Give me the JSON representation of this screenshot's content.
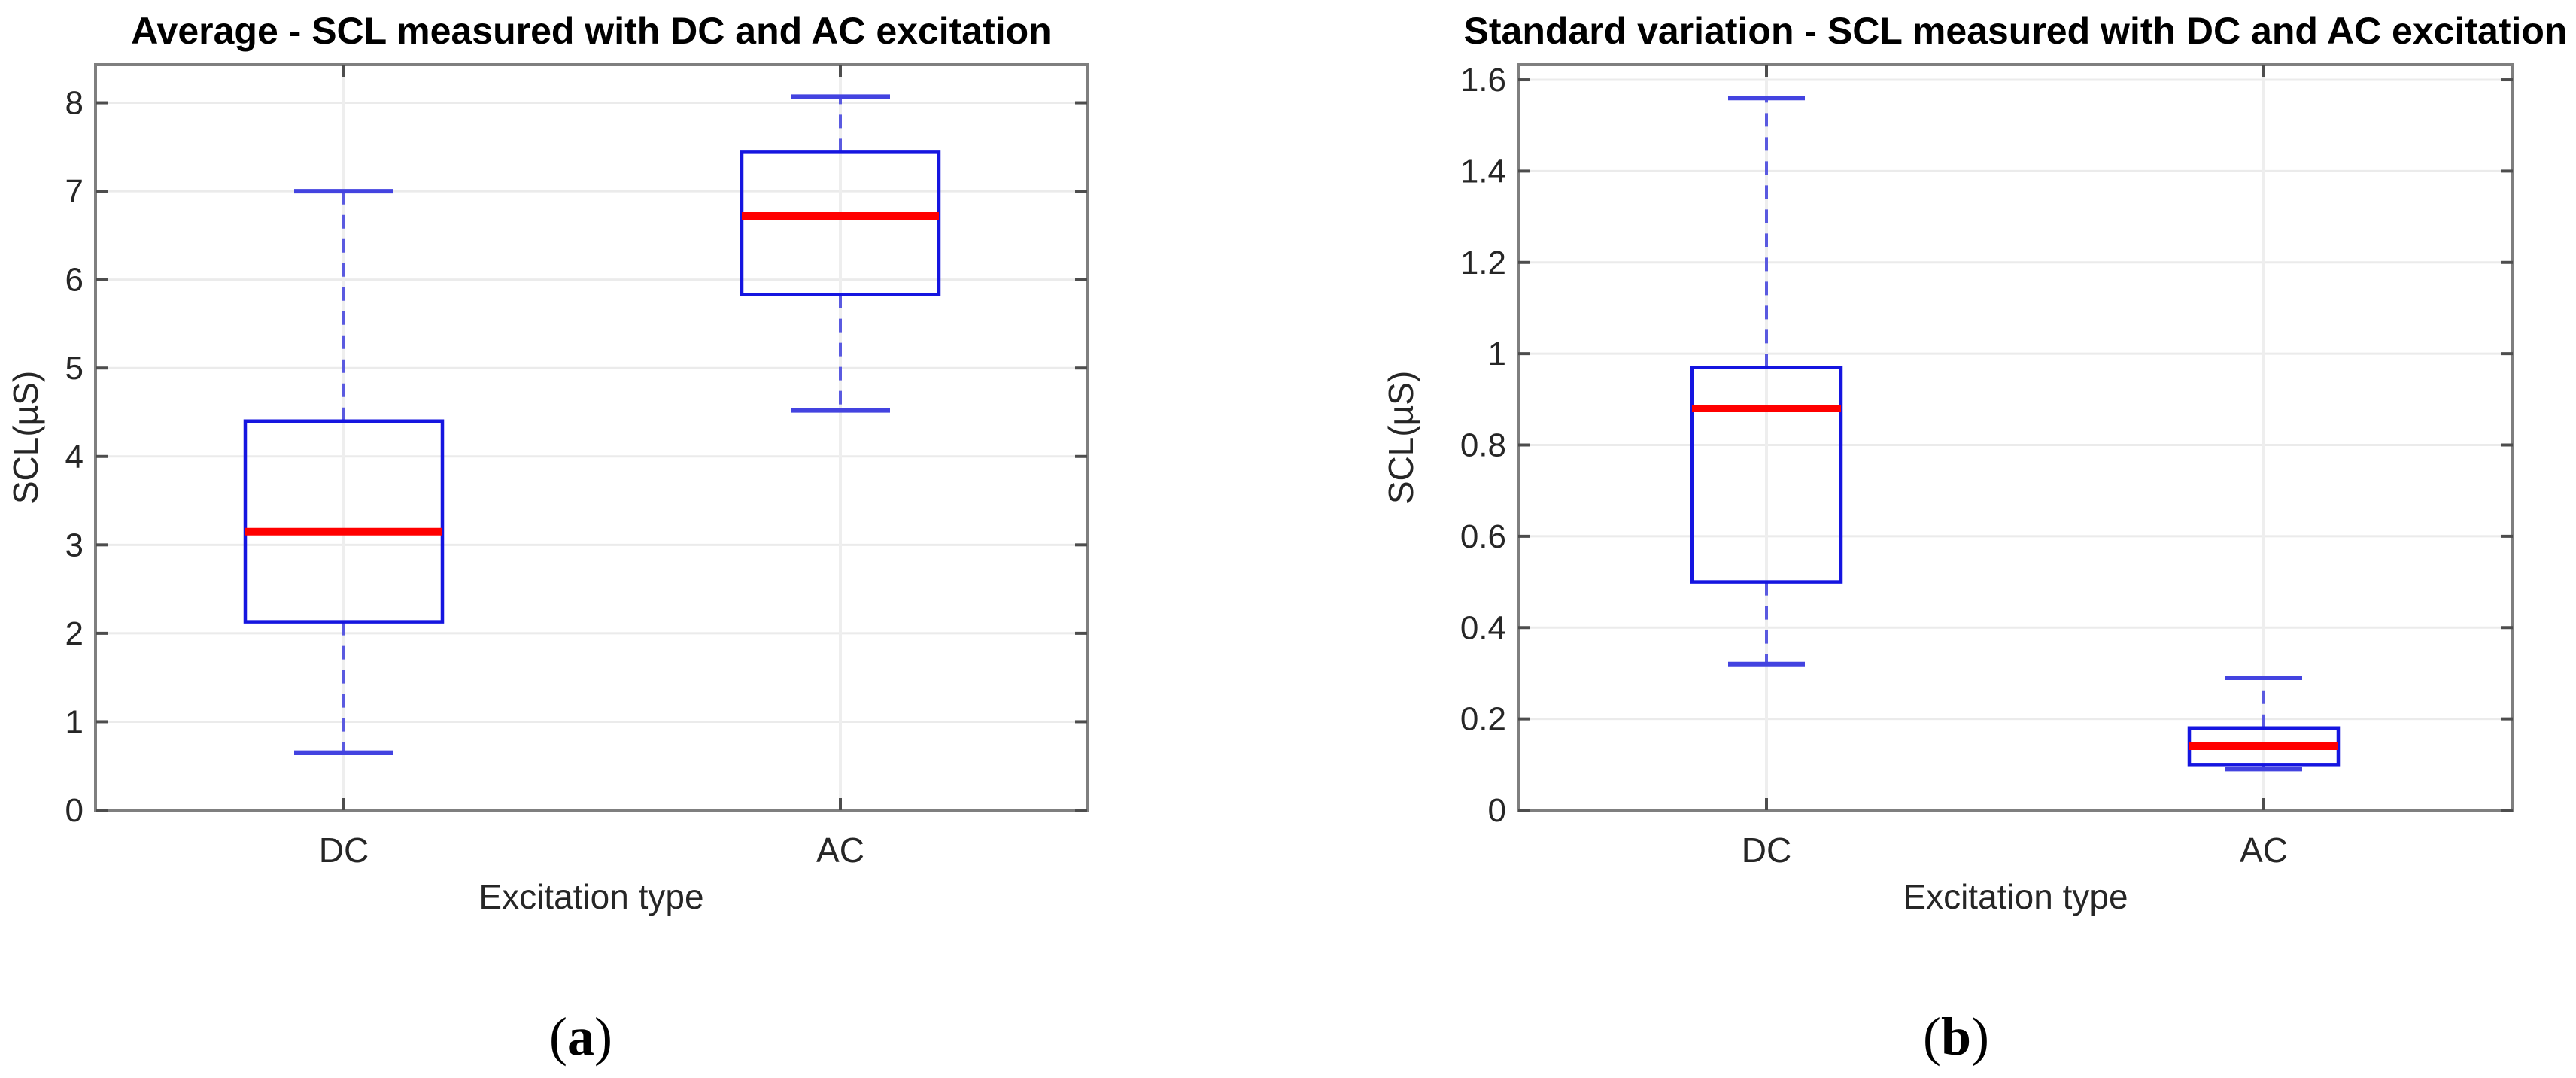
{
  "figure": {
    "background": "#ffffff",
    "panel_captions": [
      "(a)",
      "(b)"
    ]
  },
  "colors": {
    "box_blue": "#1515e0",
    "whisker_blue": "#5a5ae0",
    "cap_blue": "#4343e0",
    "median_red": "#ff0000",
    "axis_gray": "#7f7f7f",
    "tick_gray": "#4d4d4d",
    "grid_gray": "#ebebeb",
    "vgrid_gray": "#eeeeee",
    "tick_label_color": "#262626",
    "title_color": "#000000"
  },
  "chart_data": [
    {
      "type": "boxplot",
      "title": "Average - SCL measured with DC and AC excitation",
      "xlabel": "Excitation type",
      "ylabel": "SCL(µS)",
      "caption": "(a)",
      "categories": [
        "DC",
        "AC"
      ],
      "series": [
        {
          "name": "DC",
          "whisker_low": 0.65,
          "q1": 2.13,
          "median": 3.15,
          "q3": 4.4,
          "whisker_high": 7.0
        },
        {
          "name": "AC",
          "whisker_low": 4.52,
          "q1": 5.83,
          "median": 6.72,
          "q3": 7.44,
          "whisker_high": 8.07
        }
      ],
      "ylim": [
        0,
        8.43
      ],
      "xlim": [
        0.5,
        2.5
      ],
      "yticks": [
        0,
        1,
        2,
        3,
        4,
        5,
        6,
        7,
        8
      ],
      "ytick_labels": [
        "0",
        "1",
        "2",
        "3",
        "4",
        "5",
        "6",
        "7",
        "8"
      ],
      "grid": true,
      "legend": null
    },
    {
      "type": "boxplot",
      "title": "Standard variation - SCL measured with DC and AC excitation",
      "xlabel": "Excitation type",
      "ylabel": "SCL(µS)",
      "caption": "(b)",
      "categories": [
        "DC",
        "AC"
      ],
      "series": [
        {
          "name": "DC",
          "whisker_low": 0.32,
          "q1": 0.5,
          "median": 0.88,
          "q3": 0.97,
          "whisker_high": 1.56
        },
        {
          "name": "AC",
          "whisker_low": 0.09,
          "q1": 0.1,
          "median": 0.14,
          "q3": 0.18,
          "whisker_high": 0.29
        }
      ],
      "ylim": [
        0,
        1.633
      ],
      "xlim": [
        0.5,
        2.5
      ],
      "yticks": [
        0,
        0.2,
        0.4,
        0.6,
        0.8,
        1.0,
        1.2,
        1.4,
        1.6
      ],
      "ytick_labels": [
        "0",
        "0.2",
        "0.4",
        "0.6",
        "0.8",
        "1",
        "1.2",
        "1.4",
        "1.6"
      ],
      "grid": true,
      "legend": null
    }
  ]
}
